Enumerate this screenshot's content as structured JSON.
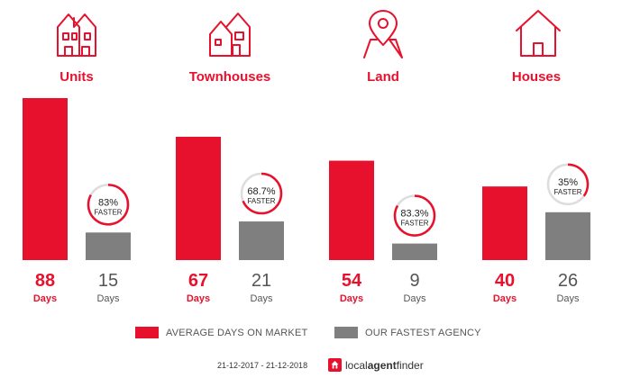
{
  "chart_data": {
    "type": "bar",
    "categories": [
      "Units",
      "Townhouses",
      "Land",
      "Houses"
    ],
    "series": [
      {
        "name": "AVERAGE DAYS ON MARKET",
        "values": [
          88,
          67,
          54,
          40
        ]
      },
      {
        "name": "OUR FASTEST AGENCY",
        "values": [
          15,
          21,
          9,
          26
        ]
      }
    ],
    "badges": [
      {
        "percent": "83%",
        "text": "FASTER",
        "fraction": 0.83
      },
      {
        "percent": "68.7%",
        "text": "FASTER",
        "fraction": 0.687
      },
      {
        "percent": "83.3%",
        "text": "FASTER",
        "fraction": 0.833
      },
      {
        "percent": "35%",
        "text": "FASTER",
        "fraction": 0.35
      }
    ],
    "icons": [
      "units-icon",
      "townhouses-icon",
      "land-icon",
      "houses-icon"
    ],
    "unit_label": "Days",
    "ylim": [
      0,
      88
    ],
    "colors": {
      "primary": "#e8112d",
      "secondary": "#7f7f7f",
      "ring_track": "#dddddd",
      "label": "#555555"
    }
  },
  "legend": {
    "market_label": "AVERAGE DAYS ON MARKET",
    "agency_label": "OUR FASTEST AGENCY"
  },
  "footer": {
    "date_range": "21-12-2017 - 21-12-2018",
    "brand_light": "local",
    "brand_bold": "agent",
    "brand_end": "finder"
  }
}
